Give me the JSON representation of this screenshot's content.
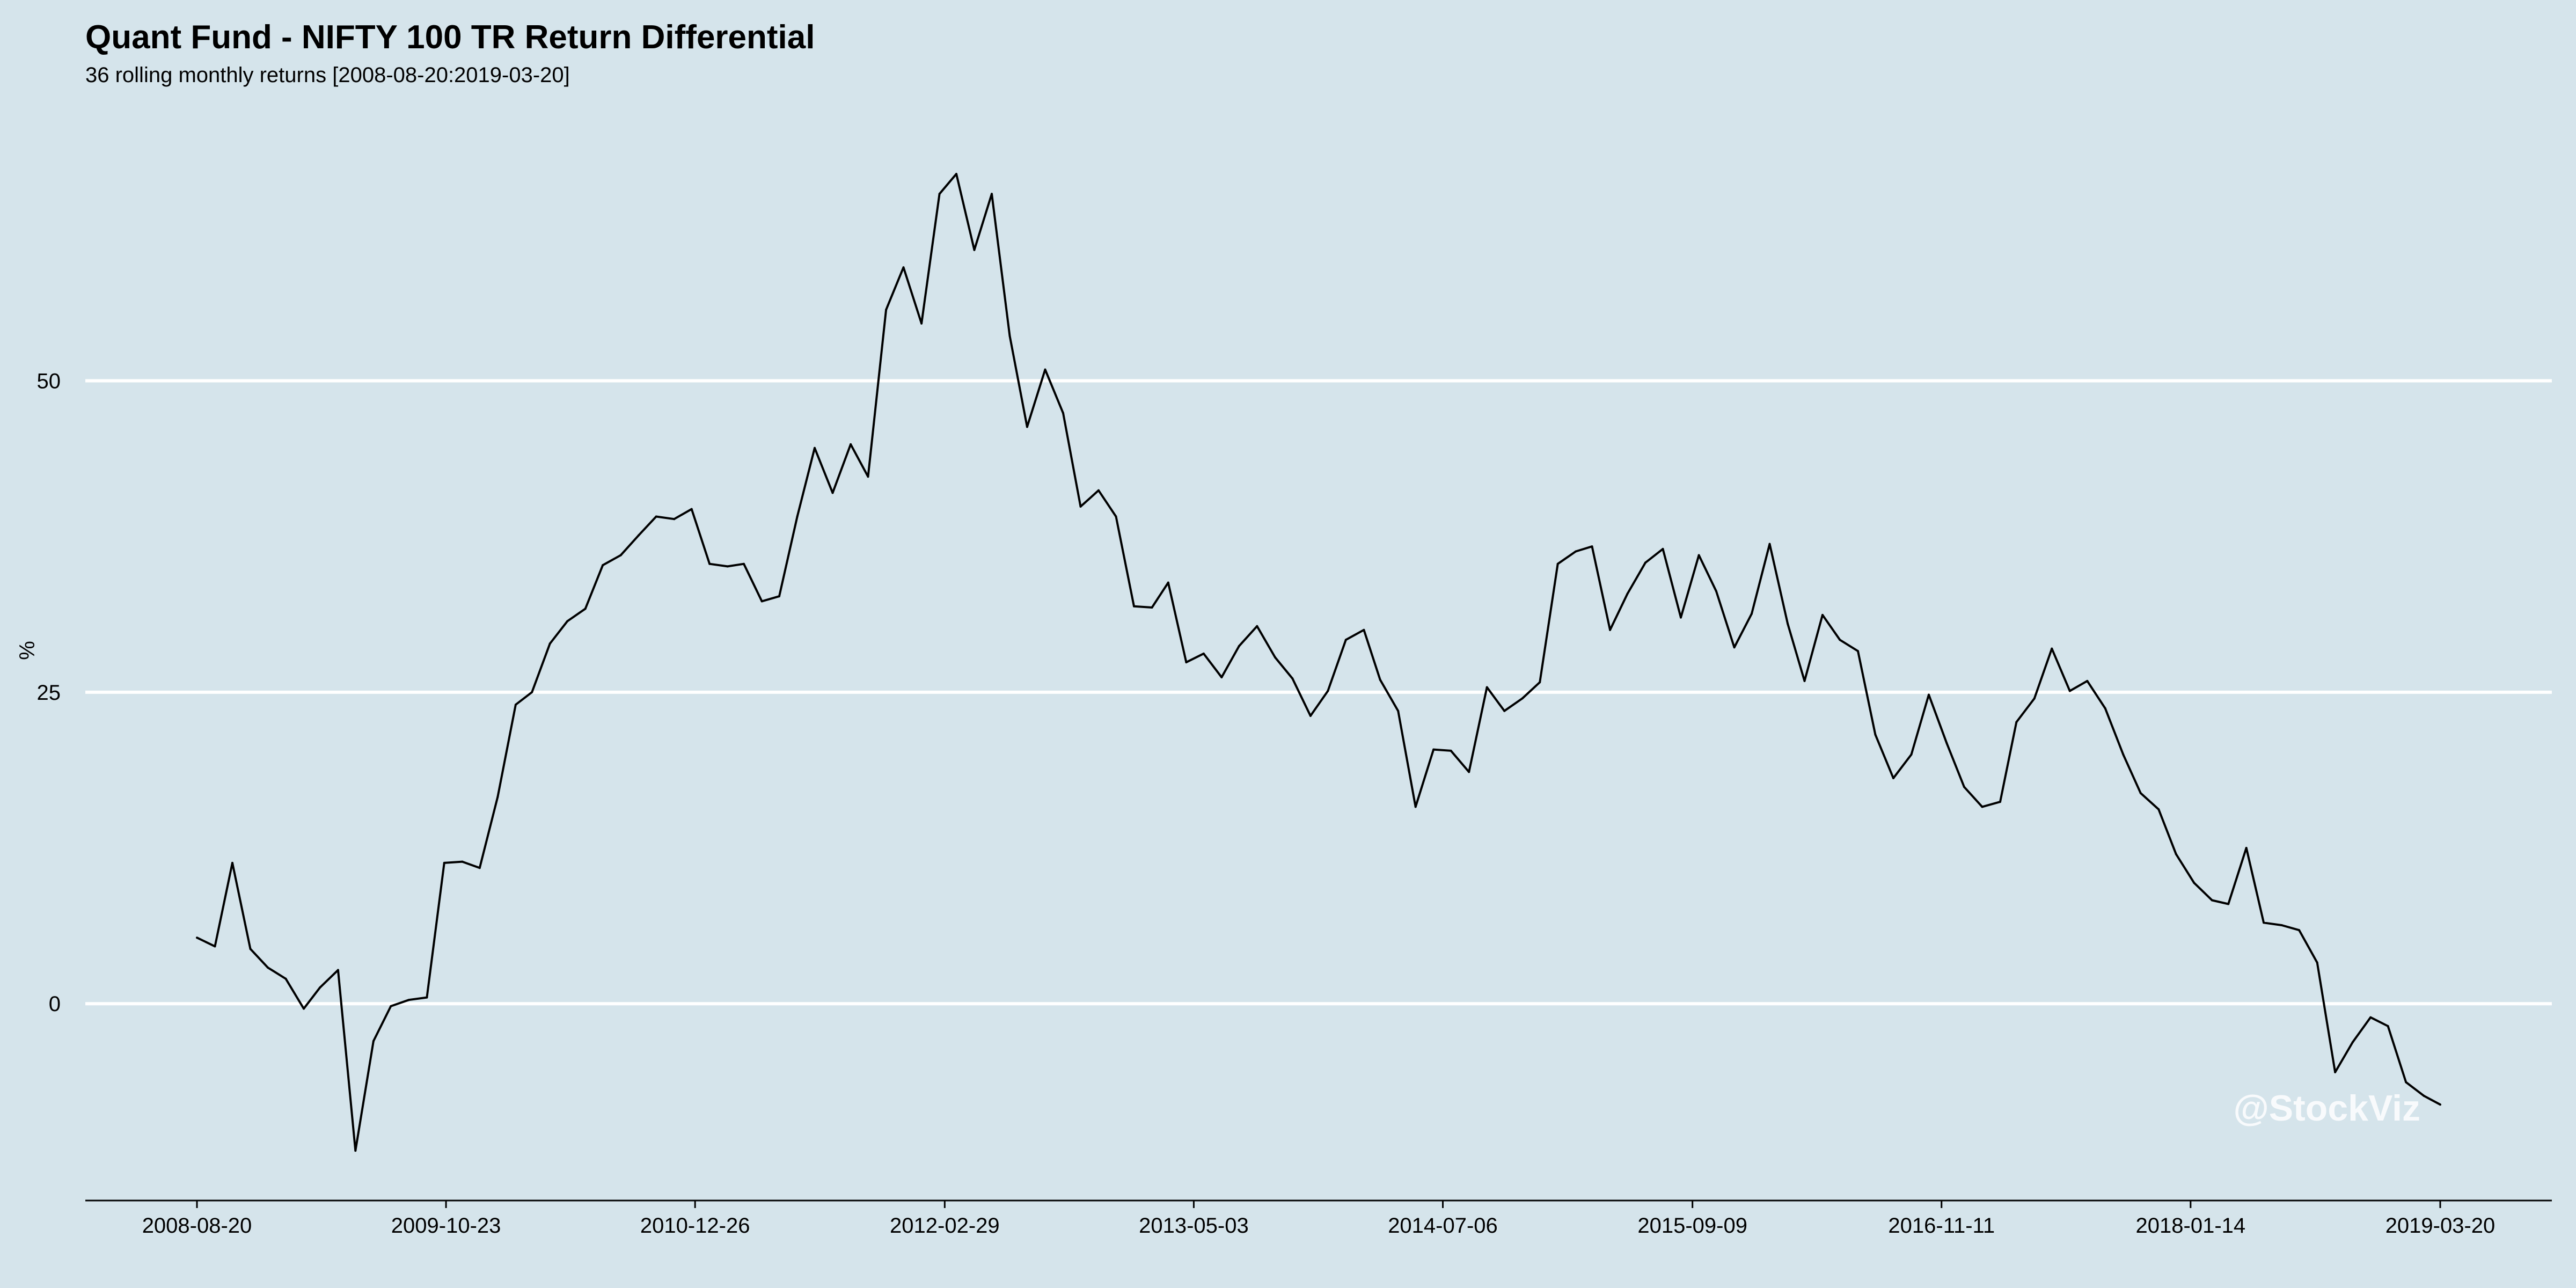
{
  "chart_data": {
    "type": "line",
    "title": "Quant Fund - NIFTY 100 TR Return Differential",
    "subtitle": "36 rolling monthly returns [2008-08-20:2019-03-20]",
    "xlabel": "",
    "ylabel": "%",
    "x_range": [
      "2008-08-20",
      "2019-03-20"
    ],
    "ylim": [
      -15.8,
      74.1
    ],
    "x_ticks": [
      "2008-08-20",
      "2009-10-23",
      "2010-12-26",
      "2012-02-29",
      "2013-05-03",
      "2014-07-06",
      "2015-09-09",
      "2016-11-11",
      "2018-01-14",
      "2019-03-20"
    ],
    "y_ticks": [
      0,
      25,
      50
    ],
    "grid": {
      "horizontal": true,
      "vertical": false
    },
    "legend": "none",
    "watermark": "@StockViz",
    "colors": {
      "background": "#d5e4eb",
      "line": "#000000",
      "grid": "#ffffff"
    },
    "series": [
      {
        "x": [
          "2008-08-20",
          "2008-09-20",
          "2008-10-20",
          "2008-11-20",
          "2008-12-20",
          "2009-01-20",
          "2009-02-20",
          "2009-03-20",
          "2009-04-20",
          "2009-05-20",
          "2009-06-20",
          "2009-07-20",
          "2009-08-20",
          "2009-09-20",
          "2009-10-20",
          "2009-11-20",
          "2009-12-20",
          "2010-01-20",
          "2010-02-20",
          "2010-03-20",
          "2010-04-20",
          "2010-05-20",
          "2010-06-20",
          "2010-07-20",
          "2010-08-20",
          "2010-09-20",
          "2010-10-20",
          "2010-11-20",
          "2010-12-20",
          "2011-01-20",
          "2011-02-20",
          "2011-03-20",
          "2011-04-20",
          "2011-05-20",
          "2011-06-20",
          "2011-07-20",
          "2011-08-20",
          "2011-09-20",
          "2011-10-20",
          "2011-11-20",
          "2011-12-20",
          "2012-01-20",
          "2012-02-20",
          "2012-03-20",
          "2012-04-20",
          "2012-05-20",
          "2012-06-20",
          "2012-07-20",
          "2012-08-20",
          "2012-09-20",
          "2012-10-20",
          "2012-11-20",
          "2012-12-20",
          "2013-01-20",
          "2013-02-20",
          "2013-03-20",
          "2013-04-20",
          "2013-05-20",
          "2013-06-20",
          "2013-07-20",
          "2013-08-20",
          "2013-09-20",
          "2013-10-20",
          "2013-11-20",
          "2013-12-20",
          "2014-01-20",
          "2014-02-20",
          "2014-03-20",
          "2014-04-20",
          "2014-05-20",
          "2014-06-20",
          "2014-07-20",
          "2014-08-20",
          "2014-09-20",
          "2014-10-20",
          "2014-11-20",
          "2014-12-20",
          "2015-01-20",
          "2015-02-20",
          "2015-03-20",
          "2015-04-20",
          "2015-05-20",
          "2015-06-20",
          "2015-07-20",
          "2015-08-20",
          "2015-09-20",
          "2015-10-20",
          "2015-11-20",
          "2015-12-20",
          "2016-01-20",
          "2016-02-20",
          "2016-03-20",
          "2016-04-20",
          "2016-05-20",
          "2016-06-20",
          "2016-07-20",
          "2016-08-20",
          "2016-09-20",
          "2016-10-20",
          "2016-11-20",
          "2016-12-20",
          "2017-01-20",
          "2017-02-20",
          "2017-03-20",
          "2017-04-20",
          "2017-05-20",
          "2017-06-20",
          "2017-07-20",
          "2017-08-20",
          "2017-09-20",
          "2017-10-20",
          "2017-11-20",
          "2017-12-20",
          "2018-01-20",
          "2018-02-20",
          "2018-03-20",
          "2018-04-20",
          "2018-05-20",
          "2018-06-20",
          "2018-07-20",
          "2018-08-20",
          "2018-09-20",
          "2018-10-20",
          "2018-11-20",
          "2018-12-20",
          "2019-01-20",
          "2019-02-20",
          "2019-03-20"
        ],
        "values": [
          5.3,
          4.6,
          11.3,
          4.4,
          2.9,
          2.0,
          -0.4,
          1.3,
          2.7,
          -11.8,
          -3.0,
          -0.2,
          0.3,
          0.5,
          11.3,
          11.4,
          10.9,
          16.6,
          24.0,
          25.0,
          28.9,
          30.7,
          31.7,
          35.2,
          36.0,
          37.6,
          39.1,
          38.9,
          39.7,
          35.3,
          35.1,
          35.3,
          32.3,
          32.7,
          39.1,
          44.6,
          41.0,
          44.9,
          42.3,
          55.7,
          59.1,
          54.6,
          65.0,
          66.6,
          60.5,
          65.0,
          53.6,
          46.3,
          50.9,
          47.4,
          39.9,
          41.2,
          39.1,
          31.9,
          31.8,
          33.8,
          27.4,
          28.1,
          26.2,
          28.7,
          30.3,
          27.8,
          26.1,
          23.1,
          25.1,
          29.2,
          30.0,
          26.0,
          23.5,
          15.8,
          20.4,
          20.3,
          18.6,
          25.4,
          23.5,
          24.5,
          25.8,
          35.3,
          36.3,
          36.7,
          30.0,
          32.9,
          35.4,
          36.5,
          31.0,
          36.0,
          33.1,
          28.6,
          31.3,
          36.9,
          30.5,
          25.9,
          31.2,
          29.2,
          28.3,
          21.6,
          18.1,
          20.0,
          24.8,
          20.9,
          17.4,
          15.8,
          16.2,
          22.6,
          24.5,
          28.5,
          25.1,
          25.9,
          23.7,
          20.0,
          16.9,
          15.6,
          12.0,
          9.7,
          8.3,
          8.0,
          12.5,
          6.5,
          6.3,
          5.9,
          3.3,
          -5.5,
          -3.1,
          -1.1,
          -1.8,
          -6.3,
          -7.4,
          -8.1
        ]
      }
    ]
  }
}
